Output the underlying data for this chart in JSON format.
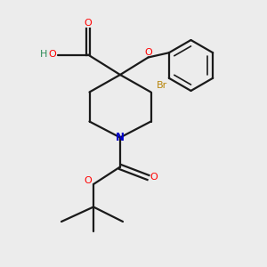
{
  "bg_color": "#ececec",
  "bond_color": "#1a1a1a",
  "colors": {
    "O": "#ff0000",
    "N": "#0000cc",
    "Br": "#b8860b",
    "HO": "#2e8b57",
    "C": "#1a1a1a"
  },
  "figsize": [
    3.0,
    3.0
  ],
  "dpi": 100
}
